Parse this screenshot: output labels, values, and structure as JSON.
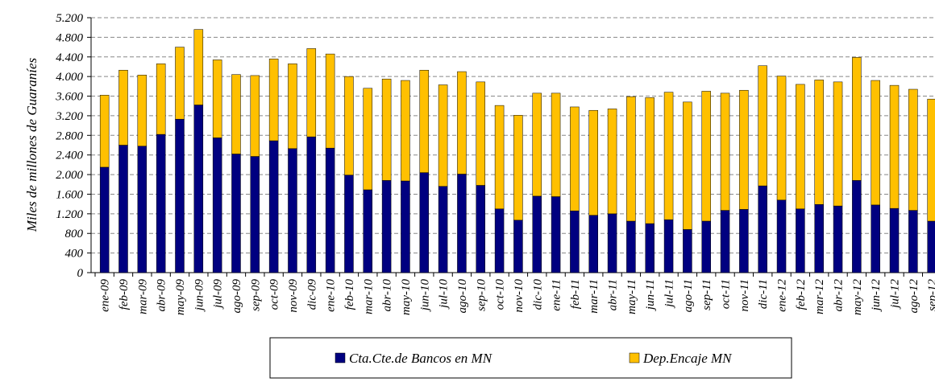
{
  "chart_data": {
    "type": "stacked_bar",
    "y_label": "Miles de millones de Guaraníes",
    "categories": [
      "ene-09",
      "feb-09",
      "mar-09",
      "abr-09",
      "may-09",
      "jun-09",
      "jul-09",
      "ago-09",
      "sep-09",
      "oct-09",
      "nov-09",
      "dic-09",
      "ene-10",
      "feb-10",
      "mar-10",
      "abr-10",
      "may-10",
      "jun-10",
      "jul-10",
      "ago-10",
      "sep-10",
      "oct-10",
      "nov-10",
      "dic-10",
      "ene-11",
      "feb-11",
      "mar-11",
      "abr-11",
      "may-11",
      "jun-11",
      "jul-11",
      "ago-11",
      "sep-11",
      "oct-11",
      "nov-11",
      "dic-11",
      "ene-12",
      "feb-12",
      "mar-12",
      "abr-12",
      "may-12",
      "jun-12",
      "jul-12",
      "ago-12",
      "sep-12"
    ],
    "series": [
      {
        "name": "Cta.Cte.de Bancos en MN",
        "color": "#000080",
        "values": [
          2150,
          2600,
          2580,
          2820,
          3130,
          3420,
          2750,
          2420,
          2370,
          2690,
          2530,
          2770,
          2540,
          1990,
          1690,
          1880,
          1870,
          2040,
          1760,
          2010,
          1780,
          1300,
          1070,
          1560,
          1550,
          1260,
          1170,
          1200,
          1050,
          1000,
          1080,
          880,
          1050,
          1270,
          1290,
          1770,
          1480,
          1300,
          1390,
          1360,
          1880,
          1380,
          1310,
          1270,
          1050
        ]
      },
      {
        "name": "Dep.Encaje MN",
        "color": "#FFC000",
        "values": [
          1470,
          1530,
          1450,
          1440,
          1470,
          1540,
          1590,
          1620,
          1650,
          1670,
          1730,
          1800,
          1920,
          2010,
          2070,
          2070,
          2050,
          2090,
          2070,
          2090,
          2110,
          2110,
          2140,
          2100,
          2110,
          2120,
          2140,
          2140,
          2540,
          2570,
          2600,
          2600,
          2650,
          2390,
          2430,
          2450,
          2530,
          2540,
          2540,
          2530,
          2510,
          2540,
          2510,
          2470,
          2490
        ]
      }
    ],
    "ylim": [
      0,
      5200
    ],
    "yticks": [
      0,
      {
        "value": 400,
        "label": "400"
      },
      {
        "value": 800,
        "label": "800"
      },
      {
        "value": 1200,
        "label": "1.200"
      },
      {
        "value": 1600,
        "label": "1.600"
      },
      {
        "value": 2000,
        "label": "2.000"
      },
      {
        "value": 2400,
        "label": "2.400"
      },
      {
        "value": 2800,
        "label": "2.800"
      },
      {
        "value": 3200,
        "label": "3.200"
      },
      {
        "value": 3600,
        "label": "3.600"
      },
      {
        "value": 4000,
        "label": "4.000"
      },
      {
        "value": 4400,
        "label": "4.400"
      },
      {
        "value": 4800,
        "label": "4.800"
      },
      {
        "value": 5200,
        "label": "5.200"
      }
    ],
    "grid": true,
    "legend": "bottom"
  }
}
